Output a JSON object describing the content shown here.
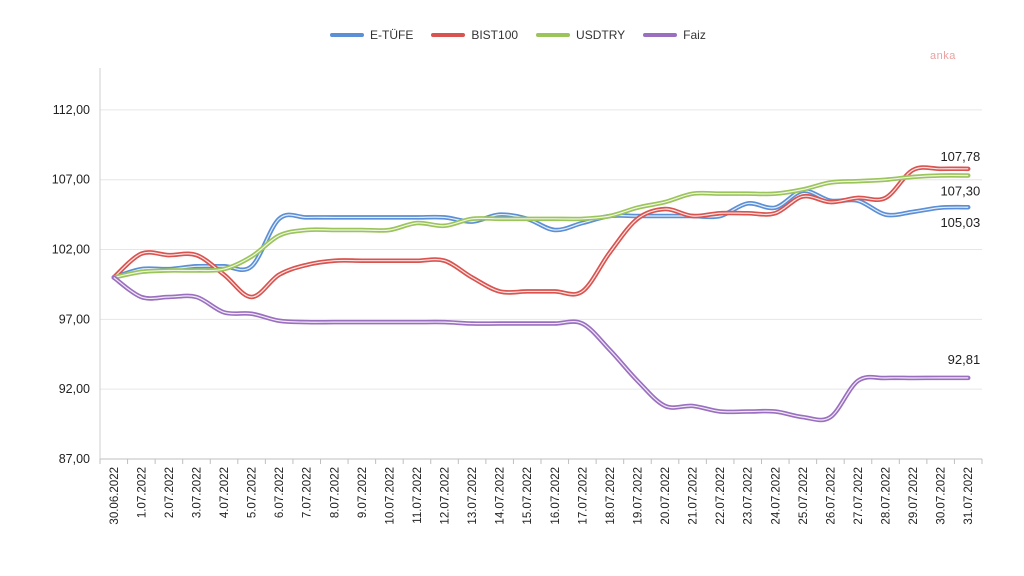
{
  "chart_data": {
    "type": "line",
    "x": [
      "30.06.2022",
      "1.07.2022",
      "2.07.2022",
      "3.07.2022",
      "4.07.2022",
      "5.07.2022",
      "6.07.2022",
      "7.07.2022",
      "8.07.2022",
      "9.07.2022",
      "10.07.2022",
      "11.07.2022",
      "12.07.2022",
      "13.07.2022",
      "14.07.2022",
      "15.07.2022",
      "16.07.2022",
      "17.07.2022",
      "18.07.2022",
      "19.07.2022",
      "20.07.2022",
      "21.07.2022",
      "22.07.2022",
      "23.07.2022",
      "24.07.2022",
      "25.07.2022",
      "26.07.2022",
      "27.07.2022",
      "28.07.2022",
      "29.07.2022",
      "30.07.2022",
      "31.07.2022"
    ],
    "ylim": [
      87,
      115
    ],
    "yticks": [
      "112,00",
      "107,00",
      "102,00",
      "97,00",
      "92,00",
      "87,00"
    ],
    "ytick_values": [
      112,
      107,
      102,
      97,
      92,
      87
    ],
    "grid": true,
    "legend_position": "top",
    "series": [
      {
        "name": "E-TÜFE",
        "color": "#5b8fd6",
        "values": [
          100.0,
          100.6,
          100.6,
          100.8,
          100.8,
          100.8,
          104.2,
          104.3,
          104.3,
          104.3,
          104.3,
          104.3,
          104.3,
          104.0,
          104.5,
          104.2,
          103.4,
          103.9,
          104.4,
          104.4,
          104.4,
          104.4,
          104.4,
          105.3,
          105.0,
          106.2,
          105.5,
          105.5,
          104.5,
          104.7,
          105.0,
          105.03
        ]
      },
      {
        "name": "BIST100",
        "color": "#d9534f",
        "values": [
          100.0,
          101.7,
          101.6,
          101.6,
          100.2,
          98.6,
          100.2,
          100.9,
          101.2,
          101.2,
          101.2,
          101.2,
          101.2,
          100.0,
          99.0,
          99.0,
          99.0,
          99.0,
          101.8,
          104.2,
          104.9,
          104.4,
          104.6,
          104.6,
          104.6,
          105.8,
          105.4,
          105.7,
          105.7,
          107.7,
          107.78,
          107.78
        ]
      },
      {
        "name": "USDTRY",
        "color": "#9bc45a",
        "values": [
          100.0,
          100.4,
          100.5,
          100.5,
          100.6,
          101.5,
          103.0,
          103.4,
          103.4,
          103.4,
          103.4,
          103.9,
          103.7,
          104.2,
          104.2,
          104.2,
          104.2,
          104.2,
          104.4,
          105.0,
          105.4,
          106.0,
          106.0,
          106.0,
          106.0,
          106.3,
          106.8,
          106.9,
          107.0,
          107.2,
          107.3,
          107.3
        ]
      },
      {
        "name": "Faiz",
        "color": "#9b6fc0",
        "values": [
          100.0,
          98.6,
          98.6,
          98.6,
          97.5,
          97.4,
          96.9,
          96.8,
          96.8,
          96.8,
          96.8,
          96.8,
          96.8,
          96.7,
          96.7,
          96.7,
          96.7,
          96.7,
          94.8,
          92.6,
          90.8,
          90.8,
          90.4,
          90.4,
          90.4,
          90.0,
          90.0,
          92.6,
          92.8,
          92.8,
          92.81,
          92.81
        ]
      }
    ],
    "annotations": [
      {
        "text": "107,78",
        "y": 107.78,
        "series": "BIST100"
      },
      {
        "text": "107,30",
        "y": 107.3,
        "series": "USDTRY"
      },
      {
        "text": "105,03",
        "y": 105.03,
        "series": "E-TÜFE"
      },
      {
        "text": "92,81",
        "y": 92.81,
        "series": "Faiz"
      }
    ]
  },
  "logo_text": "anka"
}
